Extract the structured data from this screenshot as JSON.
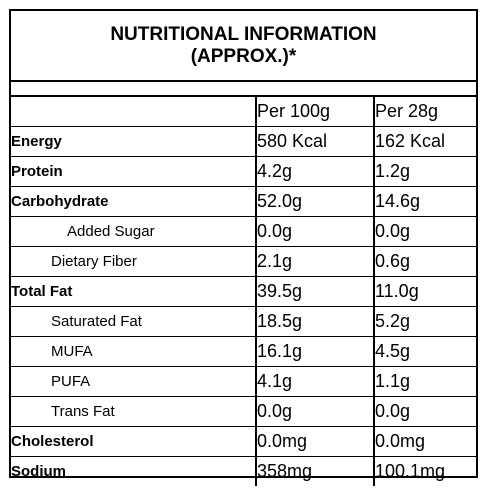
{
  "title": {
    "line1": "NUTRITIONAL INFORMATION",
    "line2": "(APPROX.)*"
  },
  "columns": [
    "",
    "Per 100g",
    "Per 28g"
  ],
  "rows": [
    {
      "label": "Energy",
      "per100": "580 Kcal",
      "per28": "162 Kcal"
    },
    {
      "label": "Protein",
      "per100": "4.2g",
      "per28": "1.2g"
    },
    {
      "label": "Carbohydrate",
      "per100": "52.0g",
      "per28": "14.6g"
    },
    {
      "label": "Added Sugar",
      "per100": "0.0g",
      "per28": "0.0g"
    },
    {
      "label": "Dietary Fiber",
      "per100": "2.1g",
      "per28": "0.6g"
    },
    {
      "label": "Total Fat",
      "per100": "39.5g",
      "per28": "11.0g"
    },
    {
      "label": "Saturated Fat",
      "per100": "18.5g",
      "per28": "5.2g"
    },
    {
      "label": "MUFA",
      "per100": "16.1g",
      "per28": "4.5g"
    },
    {
      "label": "PUFA",
      "per100": "4.1g",
      "per28": "1.1g"
    },
    {
      "label": "Trans Fat",
      "per100": "0.0g",
      "per28": "0.0g"
    },
    {
      "label": "Cholesterol",
      "per100": "0.0mg",
      "per28": "0.0mg"
    },
    {
      "label": "Sodium",
      "per100": "358mg",
      "per28": "100.1mg"
    }
  ]
}
